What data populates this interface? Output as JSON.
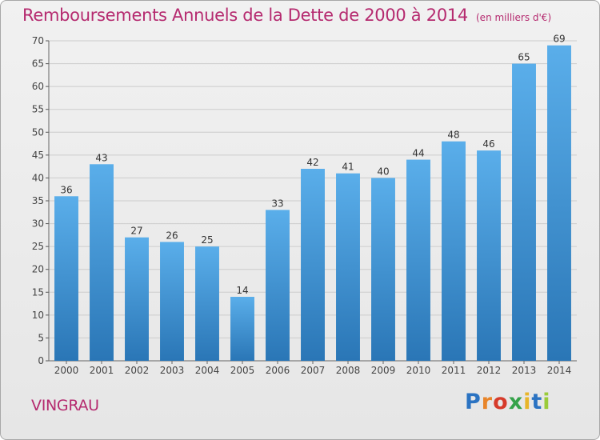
{
  "header": {
    "title": "Remboursements Annuels de la Dette de 2000 à 2014",
    "unit": "(en milliers d'€)"
  },
  "footer": {
    "commune": "VINGRAU",
    "logo": "Proxiti"
  },
  "colors": {
    "title": "#b52a6f",
    "bar_top": "#5aaeea",
    "bar_bottom": "#2a76b6",
    "grid": "#cccccc"
  },
  "chart_data": {
    "type": "bar",
    "title": "Remboursements Annuels de la Dette de 2000 à 2014",
    "xlabel": "",
    "ylabel": "",
    "categories": [
      "2000",
      "2001",
      "2002",
      "2003",
      "2004",
      "2005",
      "2006",
      "2007",
      "2008",
      "2009",
      "2010",
      "2011",
      "2012",
      "2013",
      "2014"
    ],
    "values": [
      36,
      43,
      27,
      26,
      25,
      14,
      33,
      42,
      41,
      40,
      44,
      48,
      46,
      65,
      69
    ],
    "ylim": [
      0,
      70
    ],
    "yticks": [
      0,
      5,
      10,
      15,
      20,
      25,
      30,
      35,
      40,
      45,
      50,
      55,
      60,
      65,
      70
    ],
    "grid": true,
    "data_labels": true
  }
}
